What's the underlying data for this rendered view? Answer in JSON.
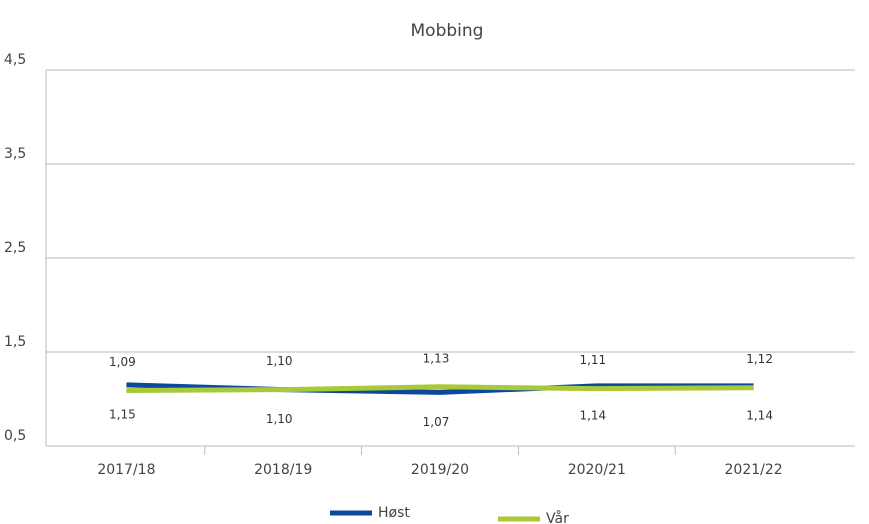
{
  "chart_data": {
    "type": "line",
    "title": "Mobbing",
    "categories": [
      "2017/18",
      "2018/19",
      "2019/20",
      "2020/21",
      "2021/22"
    ],
    "series": [
      {
        "name": "Høst",
        "color": "#0b4a9b",
        "values": [
          1.15,
          1.1,
          1.07,
          1.14,
          1.14
        ],
        "value_labels": [
          "1,15",
          "1,10",
          "1,07",
          "1,14",
          "1,14"
        ]
      },
      {
        "name": "Vår",
        "color": "#a9c93a",
        "values": [
          1.09,
          1.1,
          1.13,
          1.11,
          1.12
        ],
        "value_labels": [
          "1,09",
          "1,10",
          "1,13",
          "1,11",
          "1,12"
        ]
      }
    ],
    "ylim": [
      0.5,
      4.5
    ],
    "yticks": [
      {
        "value": 0.5,
        "label": "0,5"
      },
      {
        "value": 1.5,
        "label": "1,5"
      },
      {
        "value": 2.5,
        "label": "2,5"
      },
      {
        "value": 3.5,
        "label": "3,5"
      },
      {
        "value": 4.5,
        "label": "4,5"
      }
    ],
    "grid": true,
    "legend": "bottom"
  }
}
